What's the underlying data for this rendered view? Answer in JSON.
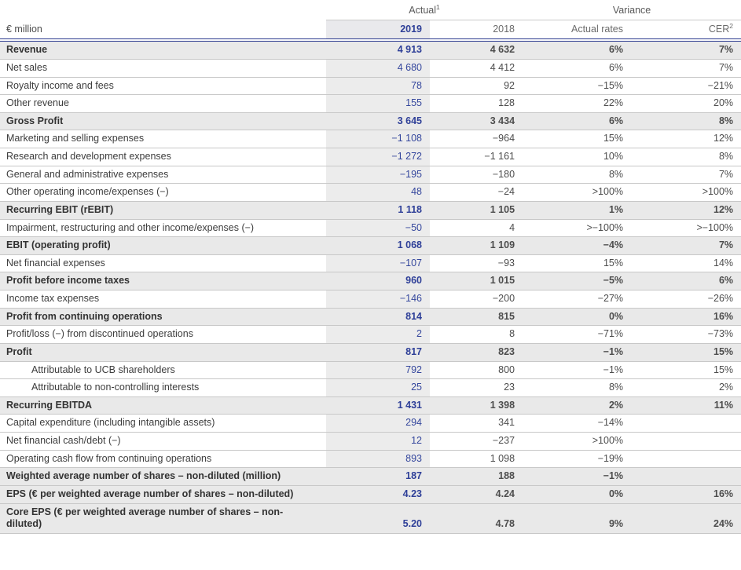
{
  "table": {
    "unit_label": "€ million",
    "group_headers": [
      {
        "label": "Actual",
        "sup": "1"
      },
      {
        "label": "Variance",
        "sup": ""
      }
    ],
    "columns": [
      {
        "label": "2019",
        "sup": ""
      },
      {
        "label": "2018",
        "sup": ""
      },
      {
        "label": "Actual rates",
        "sup": ""
      },
      {
        "label": "CER",
        "sup": "2"
      }
    ],
    "rows": [
      {
        "label": "Revenue",
        "bold": true,
        "indent": false,
        "v2019": "4 913",
        "v2018": "4 632",
        "actual_rates": "6%",
        "cer": "7%"
      },
      {
        "label": "Net sales",
        "bold": false,
        "indent": false,
        "v2019": "4 680",
        "v2018": "4 412",
        "actual_rates": "6%",
        "cer": "7%"
      },
      {
        "label": "Royalty income and fees",
        "bold": false,
        "indent": false,
        "v2019": "78",
        "v2018": "92",
        "actual_rates": "−15%",
        "cer": "−21%"
      },
      {
        "label": "Other revenue",
        "bold": false,
        "indent": false,
        "v2019": "155",
        "v2018": "128",
        "actual_rates": "22%",
        "cer": "20%"
      },
      {
        "label": "Gross Profit",
        "bold": true,
        "indent": false,
        "v2019": "3 645",
        "v2018": "3 434",
        "actual_rates": "6%",
        "cer": "8%"
      },
      {
        "label": "Marketing and selling expenses",
        "bold": false,
        "indent": false,
        "v2019": "−1 108",
        "v2018": "−964",
        "actual_rates": "15%",
        "cer": "12%"
      },
      {
        "label": "Research and development expenses",
        "bold": false,
        "indent": false,
        "v2019": "−1 272",
        "v2018": "−1 161",
        "actual_rates": "10%",
        "cer": "8%"
      },
      {
        "label": "General and administrative expenses",
        "bold": false,
        "indent": false,
        "v2019": "−195",
        "v2018": "−180",
        "actual_rates": "8%",
        "cer": "7%"
      },
      {
        "label": "Other operating income/expenses (−)",
        "bold": false,
        "indent": false,
        "v2019": "48",
        "v2018": "−24",
        "actual_rates": ">100%",
        "cer": ">100%"
      },
      {
        "label": "Recurring EBIT (rEBIT)",
        "bold": true,
        "indent": false,
        "v2019": "1 118",
        "v2018": "1 105",
        "actual_rates": "1%",
        "cer": "12%"
      },
      {
        "label": "Impairment, restructuring and other income/expenses (−)",
        "bold": false,
        "indent": false,
        "v2019": "−50",
        "v2018": "4",
        "actual_rates": ">−100%",
        "cer": ">−100%"
      },
      {
        "label": "EBIT (operating profit)",
        "bold": true,
        "indent": false,
        "v2019": "1 068",
        "v2018": "1 109",
        "actual_rates": "−4%",
        "cer": "7%"
      },
      {
        "label": "Net financial expenses",
        "bold": false,
        "indent": false,
        "v2019": "−107",
        "v2018": "−93",
        "actual_rates": "15%",
        "cer": "14%"
      },
      {
        "label": "Profit before income taxes",
        "bold": true,
        "indent": false,
        "v2019": "960",
        "v2018": "1 015",
        "actual_rates": "−5%",
        "cer": "6%"
      },
      {
        "label": "Income tax expenses",
        "bold": false,
        "indent": false,
        "v2019": "−146",
        "v2018": "−200",
        "actual_rates": "−27%",
        "cer": "−26%"
      },
      {
        "label": "Profit from continuing operations",
        "bold": true,
        "indent": false,
        "v2019": "814",
        "v2018": "815",
        "actual_rates": "0%",
        "cer": "16%"
      },
      {
        "label": "Profit/loss (−) from discontinued operations",
        "bold": false,
        "indent": false,
        "v2019": "2",
        "v2018": "8",
        "actual_rates": "−71%",
        "cer": "−73%"
      },
      {
        "label": "Profit",
        "bold": true,
        "indent": false,
        "v2019": "817",
        "v2018": "823",
        "actual_rates": "−1%",
        "cer": "15%"
      },
      {
        "label": "Attributable to UCB shareholders",
        "bold": false,
        "indent": true,
        "v2019": "792",
        "v2018": "800",
        "actual_rates": "−1%",
        "cer": "15%"
      },
      {
        "label": "Attributable to non-controlling interests",
        "bold": false,
        "indent": true,
        "v2019": "25",
        "v2018": "23",
        "actual_rates": "8%",
        "cer": "2%"
      },
      {
        "label": "Recurring EBITDA",
        "bold": true,
        "indent": false,
        "v2019": "1 431",
        "v2018": "1 398",
        "actual_rates": "2%",
        "cer": "11%"
      },
      {
        "label": "Capital expenditure (including intangible assets)",
        "bold": false,
        "indent": false,
        "v2019": "294",
        "v2018": "341",
        "actual_rates": "−14%",
        "cer": ""
      },
      {
        "label": "Net financial cash/debt (−)",
        "bold": false,
        "indent": false,
        "v2019": "12",
        "v2018": "−237",
        "actual_rates": ">100%",
        "cer": ""
      },
      {
        "label": "Operating cash flow from continuing operations",
        "bold": false,
        "indent": false,
        "v2019": "893",
        "v2018": "1 098",
        "actual_rates": "−19%",
        "cer": ""
      },
      {
        "label": "Weighted average number of shares – non-diluted (million)",
        "bold": true,
        "indent": false,
        "v2019": "187",
        "v2018": "188",
        "actual_rates": "−1%",
        "cer": ""
      },
      {
        "label": "EPS (€ per weighted average number of shares – non-diluted)",
        "bold": true,
        "indent": false,
        "v2019": "4.23",
        "v2018": "4.24",
        "actual_rates": "0%",
        "cer": "16%"
      },
      {
        "label": "Core EPS (€ per weighted average number of shares – non-diluted)",
        "bold": true,
        "indent": false,
        "v2019": "5.20",
        "v2018": "4.78",
        "actual_rates": "9%",
        "cer": "24%"
      }
    ]
  },
  "colors": {
    "accent_navy_text": "#2e3f98",
    "value_navy_text": "#35479d",
    "header_double_border": "#2c3b8f",
    "section_row_bg": "#e9e9e9",
    "col2019_band_bg": "#ececec",
    "row_divider": "#c8c8c8",
    "header_text_gray": "#6b6b6b"
  }
}
